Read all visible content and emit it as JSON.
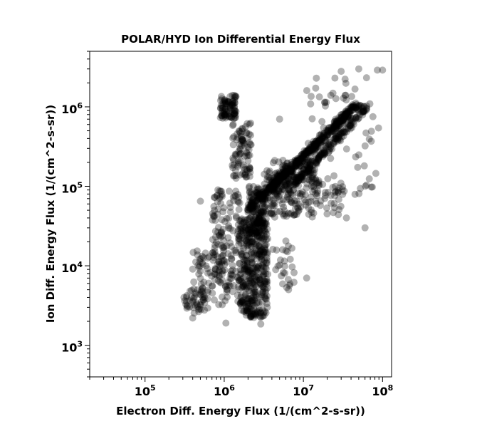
{
  "chart_data": {
    "type": "scatter",
    "title": "POLAR/HYD  Ion Differential Energy Flux",
    "xlabel": "Electron Diff. Energy Flux (1/(cm^2-s-sr))",
    "ylabel": "Ion Diff. Energy Flux (1/(cm^2-s-sr))",
    "x_scale": "log",
    "y_scale": "log",
    "xlim": [
      20000,
      130000000
    ],
    "ylim": [
      400,
      5000000
    ],
    "x_ticks": [
      {
        "base": "10",
        "exp": "5",
        "value": 100000
      },
      {
        "base": "10",
        "exp": "6",
        "value": 1000000
      },
      {
        "base": "10",
        "exp": "7",
        "value": 10000000
      },
      {
        "base": "10",
        "exp": "8",
        "value": 100000000
      }
    ],
    "y_ticks": [
      {
        "base": "10",
        "exp": "3",
        "value": 1000
      },
      {
        "base": "10",
        "exp": "4",
        "value": 10000
      },
      {
        "base": "10",
        "exp": "5",
        "value": 100000
      },
      {
        "base": "10",
        "exp": "6",
        "value": 1000000
      }
    ],
    "grid": false,
    "legend": "none",
    "marker_color": "#000000",
    "marker_opacity": 0.3,
    "clusters": [
      {
        "x_log": [
          5.95,
          6.15
        ],
        "y_log": [
          5.85,
          6.15
        ],
        "n": 90
      },
      {
        "x_log": [
          6.1,
          6.35
        ],
        "y_log": [
          5.1,
          5.8
        ],
        "n": 90
      },
      {
        "x_log": [
          5.85,
          6.2
        ],
        "y_log": [
          3.5,
          5.0
        ],
        "n": 160
      },
      {
        "x_log": [
          6.2,
          6.55
        ],
        "y_log": [
          3.35,
          4.6
        ],
        "n": 420
      },
      {
        "x_log": [
          6.3,
          6.5
        ],
        "y_log": [
          4.4,
          5.0
        ],
        "n": 120
      },
      {
        "x_log": [
          5.5,
          5.8
        ],
        "y_log": [
          3.4,
          3.7
        ],
        "n": 50
      },
      {
        "x_log": [
          5.6,
          6.0
        ],
        "y_log": [
          3.7,
          4.2
        ],
        "n": 50
      },
      {
        "x_log": [
          6.5,
          6.95
        ],
        "y_log": [
          4.6,
          5.2
        ],
        "n": 120
      },
      {
        "x_log": [
          6.6,
          7.2
        ],
        "y_log": [
          4.9,
          5.35
        ],
        "n": 100
      },
      {
        "x_log": [
          6.9,
          7.5
        ],
        "y_log": [
          4.6,
          5.1
        ],
        "n": 60
      },
      {
        "x_log": [
          6.6,
          6.9
        ],
        "y_log": [
          3.7,
          4.4
        ],
        "n": 25
      },
      {
        "x_log": [
          7.0,
          7.95
        ],
        "y_log": [
          4.8,
          6.4
        ],
        "n": 70
      }
    ],
    "trends": [
      {
        "x_log": [
          6.45,
          7.7
        ],
        "y_log": [
          4.85,
          6.05
        ],
        "n": 420,
        "spread": 0.07
      },
      {
        "x_log": [
          6.9,
          7.8
        ],
        "y_log": [
          5.05,
          6.0
        ],
        "n": 180,
        "spread": 0.06
      },
      {
        "x_log": [
          6.3,
          6.8
        ],
        "y_log": [
          4.7,
          5.2
        ],
        "n": 80,
        "spread": 0.05
      }
    ],
    "points": [
      {
        "x": 500000,
        "y": 65000
      },
      {
        "x": 3500000,
        "y": 3000
      },
      {
        "x": 2900000,
        "y": 1850
      },
      {
        "x": 1050000,
        "y": 1900
      },
      {
        "x": 400000,
        "y": 2200
      },
      {
        "x": 310000,
        "y": 4000
      },
      {
        "x": 60000000,
        "y": 30000
      },
      {
        "x": 50000000,
        "y": 3000000
      },
      {
        "x": 100000000,
        "y": 2900000
      },
      {
        "x": 86000000,
        "y": 2900000
      },
      {
        "x": 30000000,
        "y": 2800000
      },
      {
        "x": 25000000,
        "y": 2300000
      },
      {
        "x": 5000000,
        "y": 700000
      },
      {
        "x": 35000000,
        "y": 40000
      },
      {
        "x": 11000000,
        "y": 7000
      },
      {
        "x": 7600000,
        "y": 6200
      },
      {
        "x": 6500000,
        "y": 5000
      }
    ]
  }
}
